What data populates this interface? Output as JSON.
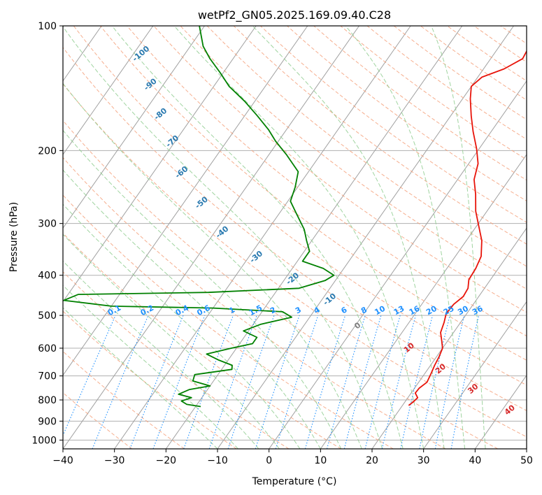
{
  "chart_data": {
    "type": "skew-t",
    "title": "wetPf2_GN05.2025.169.09.40.C28",
    "xlabel": "Temperature (°C)",
    "ylabel": "Pressure (hPa)",
    "xlim": [
      -40,
      50
    ],
    "ylim": [
      1050,
      100
    ],
    "x_ticks": [
      "−40",
      "−30",
      "−20",
      "−10",
      "0",
      "10",
      "20",
      "30",
      "40",
      "50"
    ],
    "x_tick_values": [
      -40,
      -30,
      -20,
      -10,
      0,
      10,
      20,
      30,
      40,
      50
    ],
    "y_ticks": [
      "100",
      "200",
      "300",
      "400",
      "500",
      "600",
      "700",
      "800",
      "900",
      "1000"
    ],
    "y_tick_values": [
      100,
      200,
      300,
      400,
      500,
      600,
      700,
      800,
      900,
      1000
    ],
    "grid": true,
    "colors": {
      "temperature": "#e8140a",
      "dewpoint": "#008000",
      "isotherm": "#a0a0a0",
      "dry_adiabat": "#f4a07a",
      "moist_adiabat": "#8fcc8f",
      "mixing_ratio": "#1e90ff",
      "dry_label": "#2a7ab0",
      "moist_label": "#d62728",
      "frame": "#000000"
    },
    "series": [
      {
        "key": "temperature",
        "points": [
          {
            "p": 825,
            "t": 21.2
          },
          {
            "p": 810,
            "t": 21.6
          },
          {
            "p": 790,
            "t": 21.9
          },
          {
            "p": 770,
            "t": 20.8
          },
          {
            "p": 750,
            "t": 20.9
          },
          {
            "p": 725,
            "t": 21.6
          },
          {
            "p": 690,
            "t": 21.2
          },
          {
            "p": 660,
            "t": 20.8
          },
          {
            "p": 630,
            "t": 20.5
          },
          {
            "p": 600,
            "t": 20.0
          },
          {
            "p": 575,
            "t": 18.8
          },
          {
            "p": 550,
            "t": 17.5
          },
          {
            "p": 520,
            "t": 16.8
          },
          {
            "p": 495,
            "t": 16.0
          },
          {
            "p": 470,
            "t": 16.2
          },
          {
            "p": 450,
            "t": 17.0
          },
          {
            "p": 430,
            "t": 16.8
          },
          {
            "p": 410,
            "t": 15.8
          },
          {
            "p": 385,
            "t": 15.6
          },
          {
            "p": 360,
            "t": 15.0
          },
          {
            "p": 330,
            "t": 13.0
          },
          {
            "p": 305,
            "t": 10.5
          },
          {
            "p": 280,
            "t": 7.8
          },
          {
            "p": 255,
            "t": 5.5
          },
          {
            "p": 235,
            "t": 3.2
          },
          {
            "p": 215,
            "t": 1.8
          },
          {
            "p": 198,
            "t": -0.5
          },
          {
            "p": 180,
            "t": -3.5
          },
          {
            "p": 165,
            "t": -6.0
          },
          {
            "p": 150,
            "t": -8.5
          },
          {
            "p": 140,
            "t": -10.0
          },
          {
            "p": 133,
            "t": -9.2
          },
          {
            "p": 127,
            "t": -6.0
          },
          {
            "p": 120,
            "t": -3.8
          },
          {
            "p": 112,
            "t": -4.2
          },
          {
            "p": 100,
            "t": -7.4
          }
        ]
      },
      {
        "key": "dewpoint",
        "points": [
          {
            "p": 830,
            "t": -19.0
          },
          {
            "p": 820,
            "t": -22.0
          },
          {
            "p": 805,
            "t": -23.5
          },
          {
            "p": 790,
            "t": -22.0
          },
          {
            "p": 775,
            "t": -25.0
          },
          {
            "p": 755,
            "t": -23.5
          },
          {
            "p": 740,
            "t": -20.0
          },
          {
            "p": 720,
            "t": -24.0
          },
          {
            "p": 695,
            "t": -24.5
          },
          {
            "p": 675,
            "t": -18.0
          },
          {
            "p": 660,
            "t": -18.5
          },
          {
            "p": 640,
            "t": -22.0
          },
          {
            "p": 620,
            "t": -25.0
          },
          {
            "p": 600,
            "t": -21.0
          },
          {
            "p": 585,
            "t": -17.5
          },
          {
            "p": 565,
            "t": -17.5
          },
          {
            "p": 545,
            "t": -21.0
          },
          {
            "p": 525,
            "t": -18.5
          },
          {
            "p": 505,
            "t": -13.5
          },
          {
            "p": 490,
            "t": -16.0
          },
          {
            "p": 480,
            "t": -30.0
          },
          {
            "p": 475,
            "t": -50.0
          },
          {
            "p": 460,
            "t": -60.0
          },
          {
            "p": 445,
            "t": -58.0
          },
          {
            "p": 440,
            "t": -33.0
          },
          {
            "p": 430,
            "t": -16.0
          },
          {
            "p": 412,
            "t": -12.0
          },
          {
            "p": 400,
            "t": -11.0
          },
          {
            "p": 385,
            "t": -14.0
          },
          {
            "p": 370,
            "t": -19.0
          },
          {
            "p": 350,
            "t": -19.0
          },
          {
            "p": 330,
            "t": -21.0
          },
          {
            "p": 310,
            "t": -23.0
          },
          {
            "p": 285,
            "t": -26.5
          },
          {
            "p": 265,
            "t": -29.5
          },
          {
            "p": 245,
            "t": -30.5
          },
          {
            "p": 225,
            "t": -32.0
          },
          {
            "p": 205,
            "t": -36.5
          },
          {
            "p": 190,
            "t": -40.5
          },
          {
            "p": 178,
            "t": -43.5
          },
          {
            "p": 165,
            "t": -47.5
          },
          {
            "p": 152,
            "t": -52.0
          },
          {
            "p": 140,
            "t": -57.0
          },
          {
            "p": 130,
            "t": -60.5
          },
          {
            "p": 120,
            "t": -64.5
          },
          {
            "p": 112,
            "t": -67.5
          },
          {
            "p": 105,
            "t": -69.5
          },
          {
            "p": 100,
            "t": -71.0
          }
        ]
      }
    ],
    "mixing_ratio_labels": [
      "0.1",
      "0.2",
      "0.4",
      "0.6",
      "1",
      "1.5",
      "2",
      "3",
      "4",
      "6",
      "8",
      "10",
      "13",
      "16",
      "20",
      "25",
      "30",
      "36"
    ],
    "mixing_ratio_values": [
      0.1,
      0.2,
      0.4,
      0.6,
      1,
      1.5,
      2,
      3,
      4,
      6,
      8,
      10,
      13,
      16,
      20,
      25,
      30,
      36
    ],
    "dry_adiabat_labels": [
      "-100",
      "-90",
      "-80",
      "-70",
      "-60",
      "-50",
      "-40",
      "-30",
      "-20",
      "-10"
    ],
    "dry_adiabat_values": [
      -100,
      -90,
      -80,
      -70,
      -60,
      -50,
      -40,
      -30,
      -20,
      -10
    ],
    "moist_adiabat_labels": [
      "0",
      "10",
      "20",
      "30",
      "40"
    ],
    "moist_adiabat_values": [
      0,
      10,
      20,
      30,
      40
    ]
  }
}
